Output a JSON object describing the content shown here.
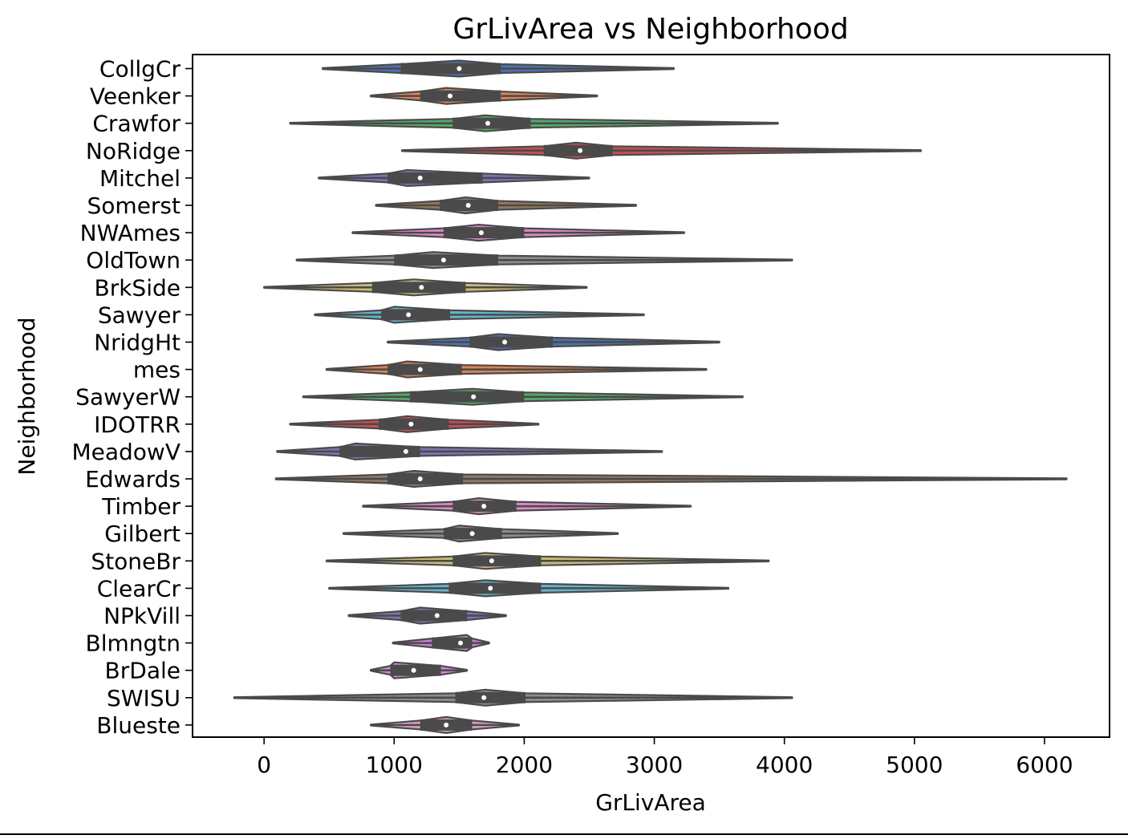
{
  "chart_data": {
    "type": "violin",
    "orientation": "horizontal",
    "title": "GrLivArea vs Neighborhood",
    "xlabel": "GrLivArea",
    "ylabel": "Neighborhood",
    "xlim": [
      -550,
      6500
    ],
    "xticks": [
      0,
      1000,
      2000,
      3000,
      4000,
      5000,
      6000
    ],
    "xtick_labels": [
      "0",
      "1000",
      "2000",
      "3000",
      "4000",
      "5000",
      "6000"
    ],
    "grid": false,
    "legend": "none",
    "body_color": "#4a4a4a",
    "categories": [
      "CollgCr",
      "Veenker",
      "Crawfor",
      "NoRidge",
      "Mitchel",
      "Somerst",
      "NWAmes",
      "OldTown",
      "BrkSide",
      "Sawyer",
      "NridgHt",
      "mes",
      "SawyerW",
      "IDOTRR",
      "MeadowV",
      "Edwards",
      "Timber",
      "Gilbert",
      "StoneBr",
      "ClearCr",
      "NPkVill",
      "Blmngtn",
      "BrDale",
      "SWISU",
      "Blueste"
    ],
    "colors": [
      "#4c72b0",
      "#dd8452",
      "#55a868",
      "#c44e52",
      "#8172b3",
      "#937860",
      "#da8bc3",
      "#8c8c8c",
      "#ccb974",
      "#64b5cd",
      "#4c72b0",
      "#dd8452",
      "#55a868",
      "#c44e52",
      "#8172b3",
      "#937860",
      "#da8bc3",
      "#8c8c8c",
      "#ccb974",
      "#64b5cd",
      "#8172b3",
      "#c77fd4",
      "#cf88d6",
      "#8c8c8c",
      "#d89fc4"
    ],
    "series": [
      {
        "category": "CollgCr",
        "min": 450,
        "q1": 1050,
        "median": 1500,
        "q3": 1820,
        "max": 3150,
        "peak": 1500
      },
      {
        "category": "Veenker",
        "min": 820,
        "q1": 1200,
        "median": 1430,
        "q3": 1820,
        "max": 2560,
        "peak": 1400
      },
      {
        "category": "Crawfor",
        "min": 200,
        "q1": 1450,
        "median": 1720,
        "q3": 2050,
        "max": 3950,
        "peak": 1700
      },
      {
        "category": "NoRidge",
        "min": 1060,
        "q1": 2150,
        "median": 2430,
        "q3": 2680,
        "max": 5050,
        "peak": 2400
      },
      {
        "category": "Mitchel",
        "min": 420,
        "q1": 950,
        "median": 1200,
        "q3": 1680,
        "max": 2500,
        "peak": 1100
      },
      {
        "category": "Somerst",
        "min": 860,
        "q1": 1350,
        "median": 1570,
        "q3": 1800,
        "max": 2860,
        "peak": 1550
      },
      {
        "category": "NWAmes",
        "min": 680,
        "q1": 1380,
        "median": 1670,
        "q3": 2000,
        "max": 3230,
        "peak": 1650
      },
      {
        "category": "OldTown",
        "min": 250,
        "q1": 1000,
        "median": 1380,
        "q3": 1800,
        "max": 4060,
        "peak": 1300
      },
      {
        "category": "BrkSide",
        "min": 0,
        "q1": 830,
        "median": 1210,
        "q3": 1550,
        "max": 2480,
        "peak": 1150
      },
      {
        "category": "Sawyer",
        "min": 390,
        "q1": 900,
        "median": 1110,
        "q3": 1430,
        "max": 2920,
        "peak": 1000
      },
      {
        "category": "NridgHt",
        "min": 950,
        "q1": 1580,
        "median": 1850,
        "q3": 2220,
        "max": 3500,
        "peak": 1800
      },
      {
        "category": "mes",
        "min": 480,
        "q1": 950,
        "median": 1200,
        "q3": 1520,
        "max": 3400,
        "peak": 1100
      },
      {
        "category": "SawyerW",
        "min": 300,
        "q1": 1120,
        "median": 1610,
        "q3": 2000,
        "max": 3680,
        "peak": 1600
      },
      {
        "category": "IDOTRR",
        "min": 200,
        "q1": 880,
        "median": 1130,
        "q3": 1420,
        "max": 2110,
        "peak": 1100
      },
      {
        "category": "MeadowV",
        "min": 100,
        "q1": 580,
        "median": 1090,
        "q3": 1200,
        "max": 3060,
        "peak": 700
      },
      {
        "category": "Edwards",
        "min": 90,
        "q1": 950,
        "median": 1200,
        "q3": 1530,
        "max": 6170,
        "peak": 1150
      },
      {
        "category": "Timber",
        "min": 760,
        "q1": 1450,
        "median": 1690,
        "q3": 1940,
        "max": 3280,
        "peak": 1650
      },
      {
        "category": "Gilbert",
        "min": 610,
        "q1": 1380,
        "median": 1600,
        "q3": 1830,
        "max": 2720,
        "peak": 1500
      },
      {
        "category": "StoneBr",
        "min": 480,
        "q1": 1450,
        "median": 1750,
        "q3": 2130,
        "max": 3880,
        "peak": 1700
      },
      {
        "category": "ClearCr",
        "min": 500,
        "q1": 1420,
        "median": 1740,
        "q3": 2130,
        "max": 3570,
        "peak": 1700
      },
      {
        "category": "NPkVill",
        "min": 650,
        "q1": 1050,
        "median": 1330,
        "q3": 1560,
        "max": 1860,
        "peak": 1200
      },
      {
        "category": "Blmngtn",
        "min": 990,
        "q1": 1290,
        "median": 1510,
        "q3": 1600,
        "max": 1730,
        "peak": 1560
      },
      {
        "category": "BrDale",
        "min": 820,
        "q1": 970,
        "median": 1150,
        "q3": 1360,
        "max": 1560,
        "peak": 1000
      },
      {
        "category": "SWISU",
        "min": -230,
        "q1": 1470,
        "median": 1690,
        "q3": 2010,
        "max": 4060,
        "peak": 1700
      },
      {
        "category": "Blueste",
        "min": 820,
        "q1": 1200,
        "median": 1400,
        "q3": 1600,
        "max": 1960,
        "peak": 1400
      }
    ]
  }
}
